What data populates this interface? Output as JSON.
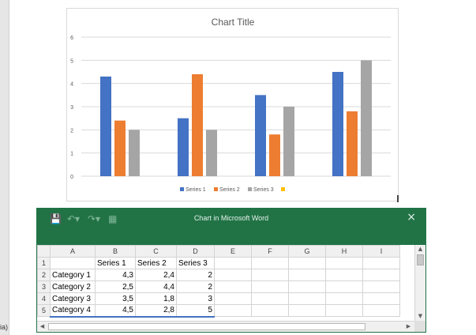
{
  "status_bar": {
    "left_fragment": "ia)"
  },
  "chart_data": {
    "type": "bar",
    "title": "Chart Title",
    "categories": [
      "Category 1",
      "Category 2",
      "Category 3",
      "Category 4"
    ],
    "series": [
      {
        "name": "Series 1",
        "values": [
          4.3,
          2.5,
          3.5,
          4.5
        ],
        "color": "#4472c4"
      },
      {
        "name": "Series 2",
        "values": [
          2.4,
          4.4,
          1.8,
          2.8
        ],
        "color": "#ed7d31"
      },
      {
        "name": "Series 3",
        "values": [
          2,
          2,
          3,
          5
        ],
        "color": "#a5a5a5"
      }
    ],
    "extra_legend_color": "#ffc000",
    "ylim": [
      0,
      6
    ],
    "yticks": [
      "0",
      "1",
      "2",
      "3",
      "4",
      "5",
      "6"
    ],
    "grid": true,
    "legend_position": "bottom"
  },
  "embed_window": {
    "title": "Chart in Microsoft Word",
    "close_icon": "×",
    "toolbar": {
      "save_icon": "save-icon",
      "undo_icon": "undo-icon",
      "redo_icon": "redo-icon",
      "edit_data_icon": "edit-data-icon"
    }
  },
  "sheet": {
    "col_headers": [
      "A",
      "B",
      "C",
      "D",
      "E",
      "F",
      "G",
      "H",
      "I"
    ],
    "rows": [
      {
        "num": "1",
        "cells": [
          "",
          "Series 1",
          "Series 2",
          "Series 3",
          "",
          "",
          "",
          "",
          ""
        ]
      },
      {
        "num": "2",
        "cells": [
          "Category 1",
          "4,3",
          "2,4",
          "2",
          "",
          "",
          "",
          "",
          ""
        ]
      },
      {
        "num": "3",
        "cells": [
          "Category 2",
          "2,5",
          "4,4",
          "2",
          "",
          "",
          "",
          "",
          ""
        ]
      },
      {
        "num": "4",
        "cells": [
          "Category 3",
          "3,5",
          "1,8",
          "3",
          "",
          "",
          "",
          "",
          ""
        ]
      },
      {
        "num": "5",
        "cells": [
          "Category 4",
          "4,5",
          "2,8",
          "5",
          "",
          "",
          "",
          "",
          ""
        ]
      }
    ]
  }
}
